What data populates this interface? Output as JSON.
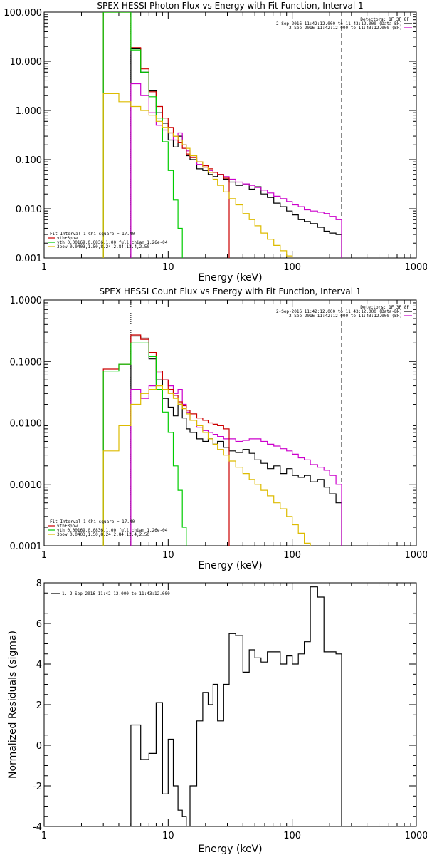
{
  "chart_data": [
    {
      "type": "line",
      "title": "SPEX HESSI Photon Flux vs Energy with Fit Function, Interval 1",
      "xlabel": "Energy (keV)",
      "ylabel": "",
      "xlim": [
        1,
        1000
      ],
      "ylim": [
        0.001,
        100
      ],
      "xscale": "log",
      "yscale": "log",
      "xticks": [
        "1",
        "10",
        "100",
        "1000"
      ],
      "yticks": [
        "0.001",
        "0.010",
        "0.100",
        "1.000",
        "10.000",
        "100.000"
      ],
      "legend_right": {
        "header": "Detectors: 1F 3F 8F",
        "entries": [
          {
            "label": "2-Sep-2016 11:42:12.000 to 11:43:12.000 (Data-Bk)",
            "color": "#000000"
          },
          {
            "label": "2-Sep-2016 11:42:12.000 to 11:43:12.000 (Bk)",
            "color": "#cc00cc"
          }
        ]
      },
      "legend_left": {
        "header": "Fit Interval 1   Chi-square = 17.40",
        "entries": [
          {
            "label": "vth+3pow",
            "color": "#cc0000"
          },
          {
            "label": "vth 0.00169,0.0836,1.00  full chian 1.26e-04",
            "color": "#00cc00"
          },
          {
            "label": "3pow 0.0403,1.50,8.24,2.84,12.4,2.50",
            "color": "#ddbb00"
          }
        ]
      },
      "vlines": [
        {
          "x": 5,
          "style": "dotted"
        },
        {
          "x": 250,
          "style": "dashed"
        }
      ],
      "series": [
        {
          "name": "Data-Bk",
          "color": "#000000",
          "edges": [
            5,
            6,
            7,
            8,
            9,
            10,
            11,
            12,
            13,
            14,
            15,
            17,
            19,
            21,
            23,
            25,
            28,
            31,
            35,
            40,
            45,
            50,
            56,
            63,
            71,
            80,
            90,
            100,
            112,
            125,
            140,
            160,
            180,
            200,
            225,
            250
          ],
          "values": [
            18,
            6,
            2.5,
            0.9,
            0.55,
            0.25,
            0.18,
            0.3,
            0.2,
            0.12,
            0.1,
            0.065,
            0.06,
            0.05,
            0.045,
            0.05,
            0.04,
            0.035,
            0.03,
            0.032,
            0.025,
            0.028,
            0.02,
            0.017,
            0.013,
            0.011,
            0.009,
            0.0075,
            0.006,
            0.0055,
            0.005,
            0.0042,
            0.0035,
            0.0032,
            0.003
          ]
        },
        {
          "name": "Bk",
          "color": "#cc00cc",
          "edges": [
            5,
            6,
            7,
            8,
            9,
            10,
            11,
            12,
            13,
            14,
            15,
            17,
            19,
            21,
            23,
            25,
            28,
            31,
            35,
            40,
            45,
            50,
            56,
            63,
            71,
            80,
            90,
            100,
            112,
            125,
            140,
            160,
            180,
            200,
            225,
            250
          ],
          "values": [
            3.5,
            2.0,
            0.9,
            0.5,
            0.4,
            0.35,
            0.25,
            0.35,
            0.2,
            0.15,
            0.12,
            0.08,
            0.07,
            0.06,
            0.055,
            0.05,
            0.045,
            0.04,
            0.035,
            0.032,
            0.03,
            0.027,
            0.024,
            0.021,
            0.018,
            0.016,
            0.014,
            0.012,
            0.011,
            0.0095,
            0.009,
            0.0085,
            0.008,
            0.007,
            0.006
          ]
        },
        {
          "name": "vth+3pow",
          "color": "#cc0000",
          "edges": [
            3,
            4,
            5,
            6,
            7,
            8,
            9,
            10,
            11,
            12,
            13,
            14,
            15,
            17,
            19,
            21,
            23,
            25,
            28,
            31
          ],
          "values": [
            100,
            100,
            19,
            7,
            2.4,
            1.2,
            0.7,
            0.45,
            0.3,
            0.22,
            0.17,
            0.13,
            0.11,
            0.09,
            0.075,
            0.065,
            0.055,
            0.05,
            0.042
          ]
        },
        {
          "name": "vth",
          "color": "#00cc00",
          "edges": [
            3,
            4,
            5,
            6,
            7,
            8,
            9,
            10,
            11,
            12,
            13
          ],
          "values": [
            100,
            100,
            17,
            6,
            1.9,
            0.7,
            0.23,
            0.06,
            0.015,
            0.004
          ]
        },
        {
          "name": "3pow",
          "color": "#ddbb00",
          "edges": [
            3,
            4,
            5,
            6,
            7,
            8,
            9,
            10,
            11,
            12,
            13,
            14,
            15,
            17,
            19,
            21,
            23,
            25,
            28,
            31,
            35,
            40,
            45,
            50,
            56,
            63,
            71,
            80,
            90,
            100
          ],
          "values": [
            2.2,
            1.5,
            1.2,
            1.0,
            0.8,
            0.6,
            0.45,
            0.35,
            0.3,
            0.25,
            0.2,
            0.17,
            0.12,
            0.09,
            0.07,
            0.055,
            0.04,
            0.03,
            0.022,
            0.016,
            0.012,
            0.008,
            0.006,
            0.0045,
            0.0032,
            0.0024,
            0.0018,
            0.0014,
            0.0011
          ]
        }
      ]
    },
    {
      "type": "line",
      "title": "SPEX HESSI Count Flux vs Energy with Fit Function, Interval 1",
      "xlabel": "Energy (keV)",
      "ylabel": "",
      "xlim": [
        1,
        1000
      ],
      "ylim": [
        0.0001,
        1
      ],
      "xscale": "log",
      "yscale": "log",
      "xticks": [
        "1",
        "10",
        "100",
        "1000"
      ],
      "yticks": [
        "0.0001",
        "0.0010",
        "0.0100",
        "0.1000",
        "1.0000"
      ],
      "legend_right": {
        "header": "Detectors: 1F 3F 8F",
        "entries": [
          {
            "label": "2-Sep-2016 11:42:12.000 to 11:43:12.000 (Data-Bk)",
            "color": "#000000"
          },
          {
            "label": "2-Sep-2016 11:42:12.000 to 11:43:12.000 (Bk)",
            "color": "#cc00cc"
          }
        ]
      },
      "legend_left": {
        "header": "Fit Interval 1   Chi-square = 17.40",
        "entries": [
          {
            "label": "vth+3pow",
            "color": "#cc0000"
          },
          {
            "label": "vth 0.00169,0.0836,1.00  full chian 1.26e-04",
            "color": "#00cc00"
          },
          {
            "label": "3pow 0.0403,1.50,8.24,2.84,12.4,2.50",
            "color": "#ddbb00"
          }
        ]
      },
      "vlines": [
        {
          "x": 5,
          "style": "dotted"
        },
        {
          "x": 250,
          "style": "dashed"
        }
      ],
      "series": [
        {
          "name": "Data-Bk",
          "color": "#000000",
          "edges": [
            5,
            6,
            7,
            8,
            9,
            10,
            11,
            12,
            13,
            14,
            15,
            17,
            19,
            21,
            23,
            25,
            28,
            31,
            35,
            40,
            45,
            50,
            56,
            63,
            71,
            80,
            90,
            100,
            112,
            125,
            140,
            160,
            180,
            200,
            225,
            250
          ],
          "values": [
            0.26,
            0.24,
            0.11,
            0.05,
            0.025,
            0.018,
            0.013,
            0.02,
            0.012,
            0.008,
            0.007,
            0.0055,
            0.005,
            0.0055,
            0.0045,
            0.005,
            0.004,
            0.0035,
            0.0033,
            0.0037,
            0.0032,
            0.0025,
            0.0022,
            0.0018,
            0.002,
            0.0015,
            0.0018,
            0.0014,
            0.0013,
            0.0014,
            0.0011,
            0.0012,
            0.0009,
            0.0007,
            0.0005
          ]
        },
        {
          "name": "Bk",
          "color": "#cc00cc",
          "edges": [
            5,
            6,
            7,
            8,
            9,
            10,
            11,
            12,
            13,
            14,
            15,
            17,
            19,
            21,
            23,
            25,
            28,
            31,
            35,
            40,
            45,
            50,
            56,
            63,
            71,
            80,
            90,
            100,
            112,
            125,
            140,
            160,
            180,
            200,
            225,
            250
          ],
          "values": [
            0.035,
            0.025,
            0.04,
            0.065,
            0.05,
            0.04,
            0.03,
            0.035,
            0.02,
            0.015,
            0.011,
            0.0085,
            0.0075,
            0.007,
            0.0065,
            0.006,
            0.0055,
            0.0055,
            0.005,
            0.0052,
            0.0055,
            0.0055,
            0.005,
            0.0045,
            0.0042,
            0.0038,
            0.0035,
            0.0031,
            0.0027,
            0.0025,
            0.0021,
            0.0019,
            0.0017,
            0.0014,
            0.001
          ]
        },
        {
          "name": "vth+3pow",
          "color": "#cc0000",
          "edges": [
            3,
            4,
            5,
            6,
            7,
            8,
            9,
            10,
            11,
            12,
            13,
            14,
            15,
            17,
            19,
            21,
            23,
            25,
            28,
            31
          ],
          "values": [
            0.075,
            0.09,
            0.27,
            0.23,
            0.14,
            0.07,
            0.05,
            0.035,
            0.028,
            0.022,
            0.019,
            0.016,
            0.014,
            0.012,
            0.011,
            0.01,
            0.0095,
            0.009,
            0.008
          ]
        },
        {
          "name": "vth",
          "color": "#00cc00",
          "edges": [
            3,
            4,
            5,
            6,
            7,
            8,
            9,
            10,
            11,
            12,
            13,
            14
          ],
          "values": [
            0.07,
            0.09,
            0.2,
            0.2,
            0.12,
            0.035,
            0.015,
            0.007,
            0.002,
            0.0008,
            0.0002
          ]
        },
        {
          "name": "3pow",
          "color": "#ddbb00",
          "edges": [
            3,
            4,
            5,
            6,
            7,
            8,
            9,
            10,
            11,
            12,
            13,
            14,
            15,
            17,
            19,
            21,
            23,
            25,
            28,
            31,
            35,
            40,
            45,
            50,
            56,
            63,
            71,
            80,
            90,
            100,
            112,
            125,
            140
          ],
          "values": [
            0.0035,
            0.009,
            0.02,
            0.03,
            0.035,
            0.04,
            0.035,
            0.03,
            0.025,
            0.02,
            0.017,
            0.014,
            0.011,
            0.009,
            0.007,
            0.0055,
            0.0045,
            0.0037,
            0.003,
            0.0024,
            0.0019,
            0.0015,
            0.0012,
            0.001,
            0.0008,
            0.00065,
            0.0005,
            0.0004,
            0.0003,
            0.00022,
            0.00016,
            0.00011
          ]
        }
      ]
    },
    {
      "type": "line",
      "title": "",
      "xlabel": "Energy (keV)",
      "ylabel": "Normalized Residuals (sigma)",
      "xlim": [
        1,
        1000
      ],
      "ylim": [
        -4,
        8
      ],
      "xscale": "log",
      "yscale": "linear",
      "xticks": [
        "1",
        "10",
        "100",
        "1000"
      ],
      "yticks": [
        "-4",
        "-2",
        "0",
        "2",
        "4",
        "6",
        "8"
      ],
      "legend_left": {
        "header": "",
        "entries": [
          {
            "label": "1.  2-Sep-2016 11:42:12.000 to 11:43:12.000",
            "color": "#000000"
          }
        ]
      },
      "series": [
        {
          "name": "residuals",
          "color": "#000000",
          "edges": [
            5,
            6,
            7,
            8,
            9,
            10,
            11,
            12,
            13,
            14,
            15,
            17,
            19,
            21,
            23,
            25,
            28,
            31,
            35,
            40,
            45,
            50,
            56,
            63,
            71,
            80,
            90,
            100,
            112,
            125,
            140,
            160,
            180,
            200,
            225,
            250
          ],
          "values": [
            1.0,
            -0.7,
            -0.4,
            2.1,
            -2.4,
            0.3,
            -2.0,
            -3.2,
            -3.5,
            -4.0,
            -2.0,
            1.2,
            2.6,
            2.0,
            3.0,
            1.2,
            3.0,
            5.5,
            5.4,
            3.6,
            4.7,
            4.3,
            4.1,
            4.6,
            4.6,
            4.0,
            4.4,
            4.0,
            4.5,
            5.1,
            7.8,
            7.3,
            4.6,
            4.6,
            4.5
          ]
        }
      ]
    }
  ]
}
